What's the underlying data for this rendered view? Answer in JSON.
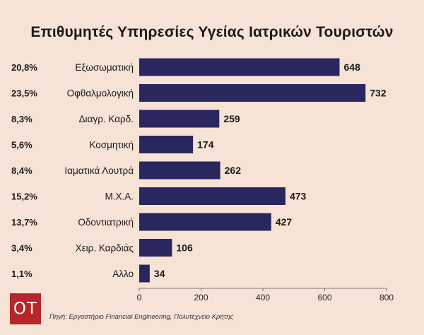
{
  "title": "Επιθυμητές Υπηρεσίες Υγείας Ιατρικών Τουριστών",
  "source": "Πηγή: Εργαστήριο Financial Engineering, Πολυτεχνείο Κρήτης",
  "logo_text": "ΟΤ",
  "colors": {
    "bar": "#29275e",
    "background": "#f6e3d6",
    "logo": "#b6262a"
  },
  "chart_data": {
    "type": "bar",
    "orientation": "horizontal",
    "title": "Επιθυμητές Υπηρεσίες Υγείας Ιατρικών Τουριστών",
    "categories": [
      "Εξωσωματική",
      "Οφθαλμολογική",
      "Διαγρ. Καρδ.",
      "Κοσμητική",
      "Ιαματικά Λουτρά",
      "Μ.Χ.Α.",
      "Οδοντιατρική",
      "Χειρ. Καρδιάς",
      "Αλλο"
    ],
    "values": [
      648,
      732,
      259,
      174,
      262,
      473,
      427,
      106,
      34
    ],
    "percentages": [
      "20,8%",
      "23,5%",
      "8,3%",
      "5,6%",
      "8,4%",
      "15,2%",
      "13,7%",
      "3,4%",
      "1,1%"
    ],
    "xlim": [
      0,
      800
    ],
    "xticks": [
      0,
      200,
      400,
      600,
      800
    ],
    "xlabel": "",
    "ylabel": "",
    "grid": false,
    "legend": "none"
  }
}
